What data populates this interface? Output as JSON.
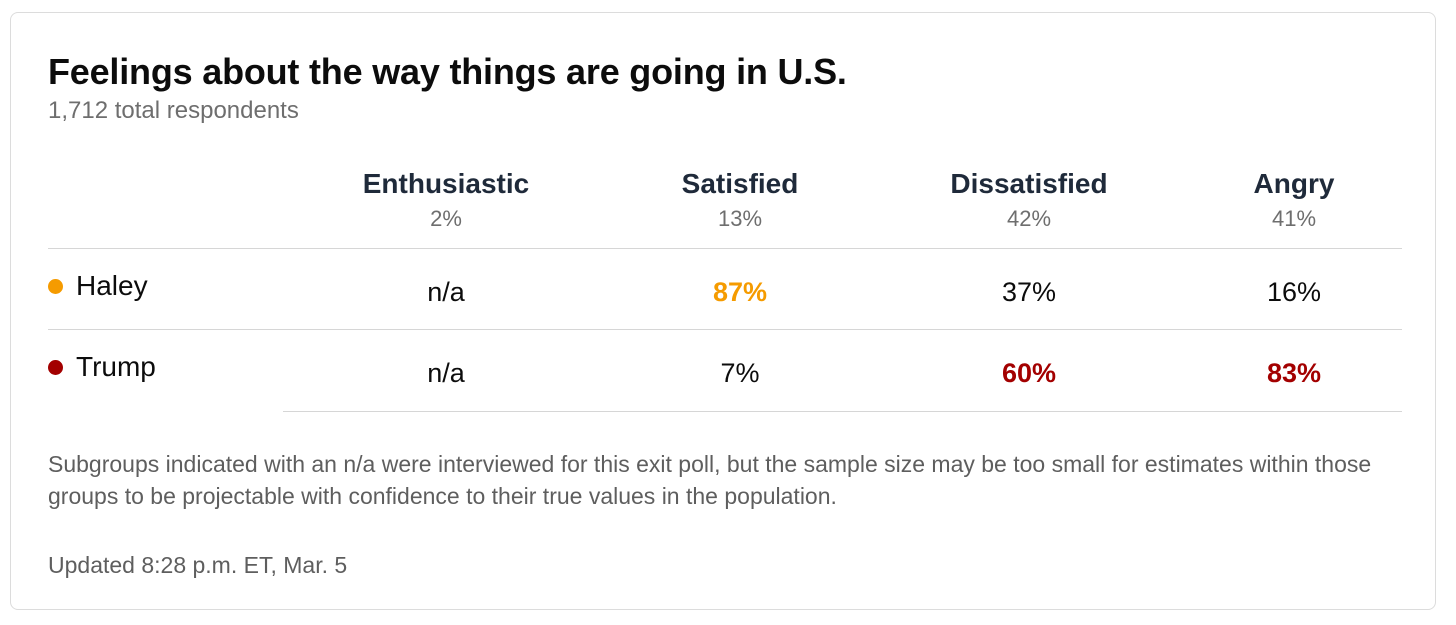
{
  "header": {
    "title": "Feelings about the way things are going in U.S.",
    "subtitle": "1,712 total respondents"
  },
  "chart_data": {
    "type": "table",
    "title": "Feelings about the way things are going in U.S.",
    "subtitle": "1,712 total respondents",
    "columns": [
      {
        "name": "Enthusiastic",
        "share": "2%"
      },
      {
        "name": "Satisfied",
        "share": "13%"
      },
      {
        "name": "Dissatisfied",
        "share": "42%"
      },
      {
        "name": "Angry",
        "share": "41%"
      }
    ],
    "rows": [
      {
        "name": "Haley",
        "color": "#f59b00",
        "values": [
          "n/a",
          "87%",
          "37%",
          "16%"
        ],
        "lead": [
          false,
          true,
          false,
          false
        ]
      },
      {
        "name": "Trump",
        "color": "#a30000",
        "values": [
          "n/a",
          "7%",
          "60%",
          "83%"
        ],
        "lead": [
          false,
          false,
          true,
          true
        ]
      }
    ]
  },
  "footer": {
    "note": "Subgroups indicated with an n/a were interviewed for this exit poll, but the sample size may be too small for estimates within those groups to be projectable with confidence to their true values in the population.",
    "updated": "Updated 8:28 p.m. ET, Mar. 5"
  }
}
